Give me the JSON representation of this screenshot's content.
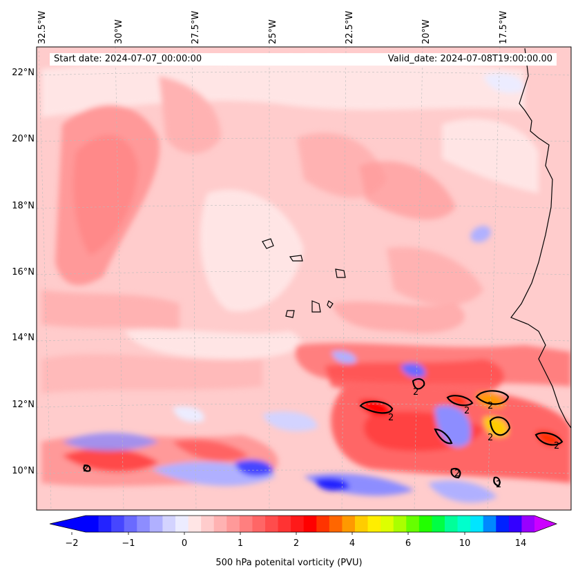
{
  "map": {
    "start_date": "Start date: 2024-07-07_00:00:00",
    "valid_date": "Valid_date: 2024-07-08T19:00:00.00",
    "lon_labels": [
      "32.5°W",
      "30°W",
      "27.5°W",
      "25°W",
      "22.5°W",
      "20°W",
      "17.5°W"
    ],
    "lat_labels": [
      "22°N",
      "20°N",
      "18°N",
      "16°N",
      "14°N",
      "12°N",
      "10°N"
    ],
    "contour_label": "2"
  },
  "colorbar": {
    "title": "500 hPa potenital vorticity (PVU)",
    "ticks": [
      "−2",
      "−1",
      "0",
      "1",
      "2",
      "4",
      "6",
      "10",
      "14"
    ],
    "colors": [
      "#0000ff",
      "#2323ff",
      "#4646ff",
      "#6a6aff",
      "#8d8dff",
      "#b0b0ff",
      "#d3d3ff",
      "#ececff",
      "#ffe5e5",
      "#ffcccc",
      "#ffb2b2",
      "#ff9999",
      "#ff7f7f",
      "#ff6666",
      "#ff4c4c",
      "#ff3333",
      "#ff1919",
      "#ff0000",
      "#ff3300",
      "#ff6600",
      "#ff9900",
      "#ffcc00",
      "#ffee00",
      "#ddff00",
      "#aaff00",
      "#66ff00",
      "#22ff00",
      "#00ff44",
      "#00ff99",
      "#00ffcc",
      "#00e5ff",
      "#0088ff",
      "#0022ff",
      "#3300ff",
      "#9900ff"
    ],
    "under_color": "#0000ff",
    "over_color": "#cc00ff"
  }
}
